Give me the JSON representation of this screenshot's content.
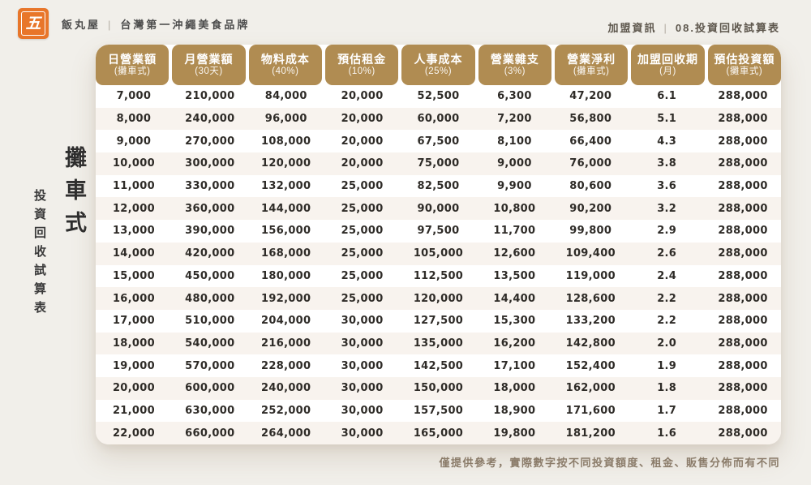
{
  "brand": {
    "logo_glyph": "五",
    "name": "飯丸屋",
    "separator": "|",
    "tagline": "台灣第一沖繩美食品牌"
  },
  "page_info": {
    "section": "加盟資訊",
    "separator": "|",
    "page_label": "08.投資回收試算表"
  },
  "side_title": {
    "main": "攤車式",
    "sub": "投資回收試算表"
  },
  "footnote": "僅提供參考，實際數字按不同投資額度、租金、販售分佈而有不同",
  "colors": {
    "accent_gold": "#b08c52",
    "logo_orange": "#e8762a",
    "row_stripe": "#f8f3ee",
    "page_bg": "#f1efea",
    "note_brown": "#8b7c6a"
  },
  "table": {
    "columns": [
      {
        "label": "日營業額",
        "sub": "(攤車式)"
      },
      {
        "label": "月營業額",
        "sub": "(30天)"
      },
      {
        "label": "物料成本",
        "sub": "(40%)"
      },
      {
        "label": "預估租金",
        "sub": "(10%)"
      },
      {
        "label": "人事成本",
        "sub": "(25%)"
      },
      {
        "label": "營業雜支",
        "sub": "(3%)"
      },
      {
        "label": "營業淨利",
        "sub": "(攤車式)"
      },
      {
        "label": "加盟回收期",
        "sub": "(月)"
      },
      {
        "label": "預估投資額",
        "sub": "(攤車式)"
      }
    ],
    "rows": [
      [
        "7,000",
        "210,000",
        "84,000",
        "20,000",
        "52,500",
        "6,300",
        "47,200",
        "6.1",
        "288,000"
      ],
      [
        "8,000",
        "240,000",
        "96,000",
        "20,000",
        "60,000",
        "7,200",
        "56,800",
        "5.1",
        "288,000"
      ],
      [
        "9,000",
        "270,000",
        "108,000",
        "20,000",
        "67,500",
        "8,100",
        "66,400",
        "4.3",
        "288,000"
      ],
      [
        "10,000",
        "300,000",
        "120,000",
        "20,000",
        "75,000",
        "9,000",
        "76,000",
        "3.8",
        "288,000"
      ],
      [
        "11,000",
        "330,000",
        "132,000",
        "25,000",
        "82,500",
        "9,900",
        "80,600",
        "3.6",
        "288,000"
      ],
      [
        "12,000",
        "360,000",
        "144,000",
        "25,000",
        "90,000",
        "10,800",
        "90,200",
        "3.2",
        "288,000"
      ],
      [
        "13,000",
        "390,000",
        "156,000",
        "25,000",
        "97,500",
        "11,700",
        "99,800",
        "2.9",
        "288,000"
      ],
      [
        "14,000",
        "420,000",
        "168,000",
        "25,000",
        "105,000",
        "12,600",
        "109,400",
        "2.6",
        "288,000"
      ],
      [
        "15,000",
        "450,000",
        "180,000",
        "25,000",
        "112,500",
        "13,500",
        "119,000",
        "2.4",
        "288,000"
      ],
      [
        "16,000",
        "480,000",
        "192,000",
        "25,000",
        "120,000",
        "14,400",
        "128,600",
        "2.2",
        "288,000"
      ],
      [
        "17,000",
        "510,000",
        "204,000",
        "30,000",
        "127,500",
        "15,300",
        "133,200",
        "2.2",
        "288,000"
      ],
      [
        "18,000",
        "540,000",
        "216,000",
        "30,000",
        "135,000",
        "16,200",
        "142,800",
        "2.0",
        "288,000"
      ],
      [
        "19,000",
        "570,000",
        "228,000",
        "30,000",
        "142,500",
        "17,100",
        "152,400",
        "1.9",
        "288,000"
      ],
      [
        "20,000",
        "600,000",
        "240,000",
        "30,000",
        "150,000",
        "18,000",
        "162,000",
        "1.8",
        "288,000"
      ],
      [
        "21,000",
        "630,000",
        "252,000",
        "30,000",
        "157,500",
        "18,900",
        "171,600",
        "1.7",
        "288,000"
      ],
      [
        "22,000",
        "660,000",
        "264,000",
        "30,000",
        "165,000",
        "19,800",
        "181,200",
        "1.6",
        "288,000"
      ]
    ]
  }
}
